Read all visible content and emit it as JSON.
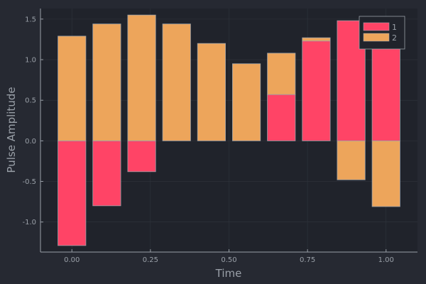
{
  "chart_data": {
    "type": "bar",
    "stacked": true,
    "xlabel": "Time",
    "ylabel": "Pulse Amplitude",
    "x": [
      0.0,
      0.1111,
      0.2222,
      0.3333,
      0.4444,
      0.5556,
      0.6667,
      0.7778,
      0.8889,
      1.0
    ],
    "xticks": [
      0.0,
      0.25,
      0.5,
      0.75,
      1.0
    ],
    "xtick_labels": [
      "0.00",
      "0.25",
      "0.50",
      "0.75",
      "1.00"
    ],
    "yticks": [
      -1.0,
      -0.5,
      0.0,
      0.5,
      1.0,
      1.5
    ],
    "ytick_labels": [
      "-1.0",
      "-0.5",
      "0.0",
      "0.5",
      "1.0",
      "1.5"
    ],
    "xlim": [
      -0.1,
      1.1
    ],
    "ylim": [
      -1.37,
      1.63
    ],
    "grid": true,
    "legend_position": "top-right",
    "series": [
      {
        "name": "1",
        "color": "#ff4466",
        "values": [
          -1.29,
          -0.8,
          -0.38,
          0.0,
          0.0,
          0.0,
          0.57,
          1.23,
          1.48,
          1.34
        ]
      },
      {
        "name": "2",
        "color": "#eda55b",
        "values": [
          1.29,
          1.44,
          1.55,
          1.44,
          1.2,
          0.95,
          0.51,
          0.04,
          -0.48,
          -0.81
        ]
      }
    ]
  },
  "colors": {
    "background": "#262932",
    "plot_background": "#20232b",
    "axis": "#9aa0a8",
    "grid": "#30343d",
    "bar_stroke": "#9aa0a8"
  }
}
